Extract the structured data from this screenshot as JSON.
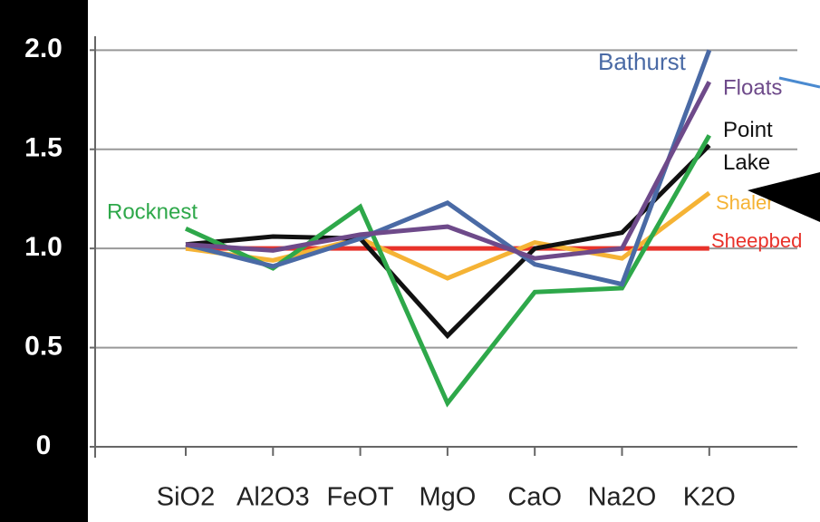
{
  "chart_data": {
    "type": "line",
    "categories": [
      "SiO2",
      "Al2O3",
      "FeOT",
      "MgO",
      "CaO",
      "Na2O",
      "K2O"
    ],
    "series": [
      {
        "name": "Sheepbed",
        "color": "#e8322a",
        "values": [
          1.0,
          1.0,
          1.0,
          1.0,
          1.0,
          1.0,
          1.0
        ]
      },
      {
        "name": "Shaler",
        "color": "#f5b335",
        "values": [
          1.0,
          0.94,
          1.05,
          0.85,
          1.03,
          0.95,
          1.28
        ]
      },
      {
        "name": "Point Lake",
        "color": "#111111",
        "values": [
          1.02,
          1.06,
          1.05,
          0.56,
          1.0,
          1.08,
          1.52
        ]
      },
      {
        "name": "Rocknest",
        "color": "#2ea84a",
        "values": [
          1.1,
          0.9,
          1.21,
          0.22,
          0.78,
          0.8,
          1.57
        ]
      },
      {
        "name": "Bathurst",
        "color": "#4a6aa5",
        "values": [
          1.02,
          0.91,
          1.05,
          1.23,
          0.92,
          0.82,
          2.0
        ]
      },
      {
        "name": "Floats",
        "color": "#6e4a8a",
        "values": [
          1.02,
          0.99,
          1.07,
          1.11,
          0.95,
          1.0,
          1.84
        ]
      }
    ],
    "ylim": [
      0,
      2.07
    ],
    "yticks": [
      0,
      0.5,
      {
        "value": 1,
        "label": "1.0"
      },
      1.5,
      {
        "value": 2,
        "label": "2.0"
      }
    ],
    "grid": true
  }
}
